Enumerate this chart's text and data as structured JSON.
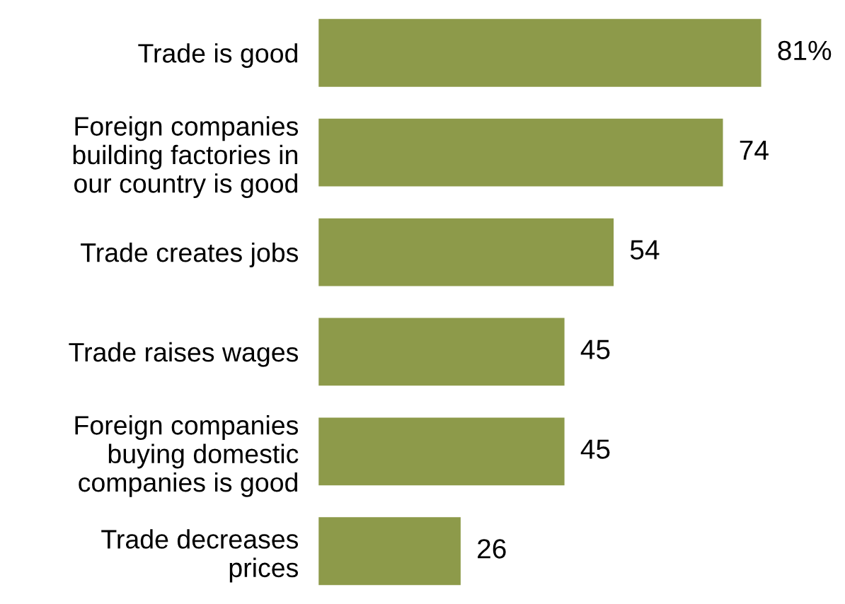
{
  "chart_data": {
    "type": "bar",
    "orientation": "horizontal",
    "categories": [
      "Trade is good",
      "Foreign companies\nbuilding factories in\nour country is good",
      "Trade creates jobs",
      "Trade raises wages",
      "Foreign companies\nbuying domestic\ncompanies is good",
      "Trade decreases\nprices"
    ],
    "values": [
      81,
      74,
      54,
      45,
      45,
      26
    ],
    "value_labels": [
      "81%",
      "74",
      "54",
      "45",
      "45",
      "26"
    ],
    "color": "#8d9a4a",
    "tick_labels": "y",
    "grid": false,
    "legend": false
  }
}
